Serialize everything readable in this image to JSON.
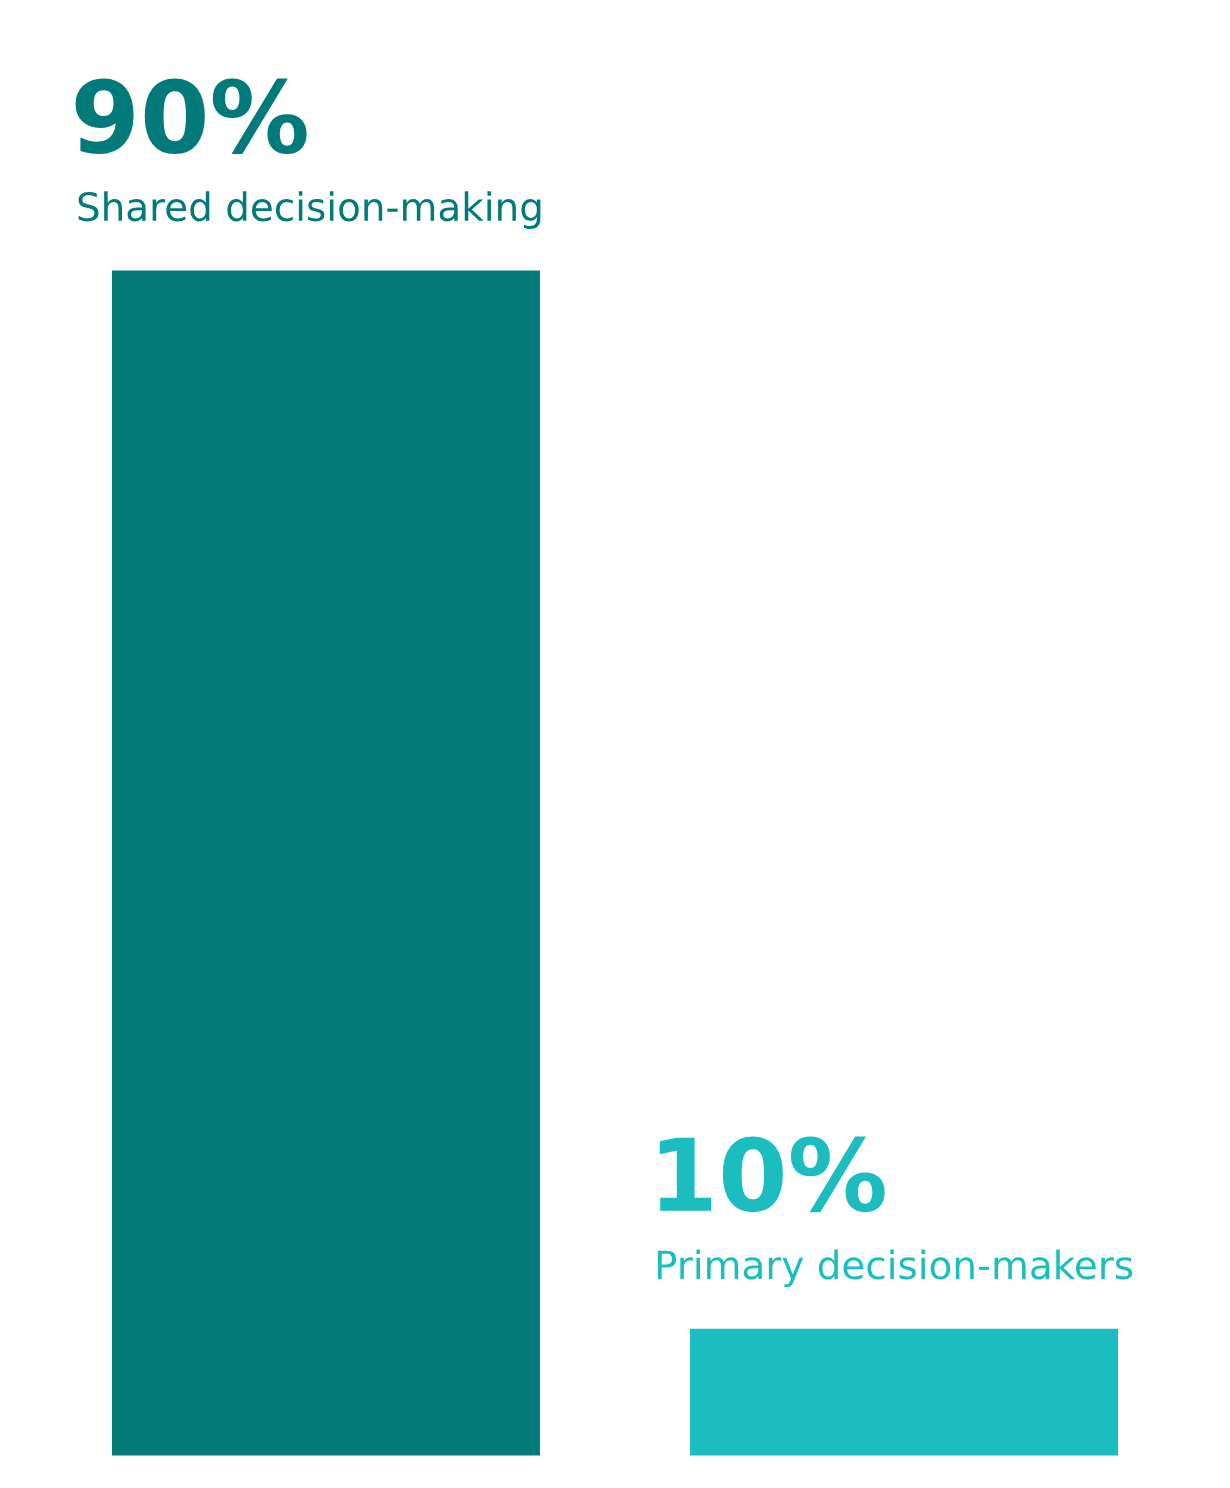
{
  "chart_data": {
    "type": "bar",
    "categories": [
      "Shared decision-making",
      "Primary decision-makers"
    ],
    "values": [
      90,
      10
    ],
    "colors": [
      "#027a7a",
      "#1bbdbf"
    ],
    "value_labels": [
      "90%",
      "10%"
    ]
  }
}
